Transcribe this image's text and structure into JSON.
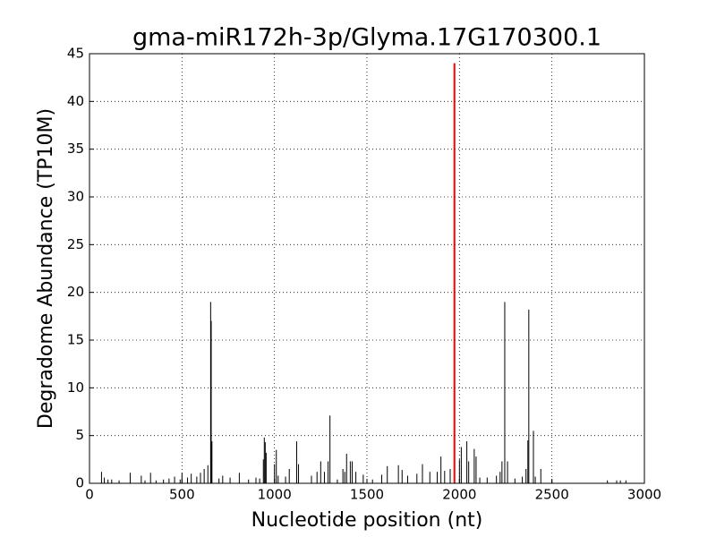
{
  "chart_data": {
    "type": "stem",
    "title": "gma-miR172h-3p/Glyma.17G170300.1",
    "x_label": "Nucleotide position (nt)",
    "y_label": "Degradome Abundance (TP10M)",
    "xlim": [
      0,
      3000
    ],
    "xticks": [
      0,
      500,
      1000,
      1500,
      2000,
      2500,
      3000
    ],
    "ylim": [
      0,
      45
    ],
    "yticks": [
      0,
      5,
      10,
      15,
      20,
      25,
      30,
      35,
      40,
      45
    ],
    "grid": true,
    "series": [
      {
        "color": "#000000",
        "x": [
          65,
          80,
          100,
          120,
          160,
          220,
          280,
          300,
          330,
          360,
          400,
          430,
          460,
          490,
          500,
          530,
          550,
          580,
          600,
          620,
          640,
          655,
          658,
          662,
          700,
          720,
          760,
          810,
          860,
          900,
          920,
          940,
          945,
          950,
          955,
          1000,
          1010,
          1020,
          1060,
          1080,
          1120,
          1130,
          1200,
          1230,
          1250,
          1270,
          1290,
          1300,
          1340,
          1370,
          1380,
          1390,
          1410,
          1420,
          1440,
          1480,
          1530,
          1580,
          1610,
          1670,
          1690,
          1720,
          1770,
          1800,
          1840,
          1880,
          1900,
          1920,
          1950,
          2000,
          2010,
          2040,
          2050,
          2080,
          2090,
          2110,
          2150,
          2200,
          2220,
          2230,
          2245,
          2260,
          2300,
          2340,
          2360,
          2370,
          2375,
          2400,
          2410,
          2440,
          2500,
          2800,
          2850,
          2870,
          2900
        ],
        "values": [
          1.2,
          0.6,
          0.4,
          0.4,
          0.3,
          1.1,
          0.8,
          0.3,
          1.1,
          0.3,
          0.4,
          0.5,
          0.7,
          0.4,
          1.1,
          0.6,
          1.0,
          0.7,
          1.1,
          1.5,
          1.9,
          19,
          17,
          4.4,
          0.5,
          0.8,
          0.6,
          1.1,
          0.4,
          0.6,
          0.5,
          2.5,
          4.8,
          4.3,
          3.2,
          2.0,
          3.5,
          0.8,
          0.7,
          1.5,
          4.4,
          2.0,
          0.8,
          1.2,
          2.3,
          1.2,
          2.3,
          7.1,
          0.4,
          1.5,
          1.2,
          3.1,
          2.3,
          2.3,
          1.2,
          0.9,
          0.4,
          0.9,
          1.8,
          1.9,
          1.4,
          0.8,
          1.0,
          2.0,
          1.2,
          1.2,
          2.8,
          1.3,
          1.5,
          2.5,
          3.8,
          4.4,
          2.3,
          3.6,
          2.8,
          0.6,
          0.6,
          0.8,
          1.2,
          2.3,
          19,
          2.3,
          0.5,
          0.7,
          1.5,
          4.5,
          18.2,
          5.5,
          0.7,
          1.5,
          0.3,
          0.3,
          0.3,
          0.3,
          0.3
        ]
      },
      {
        "color": "#ff0000",
        "x": [
          1973
        ],
        "values": [
          44
        ]
      }
    ]
  }
}
